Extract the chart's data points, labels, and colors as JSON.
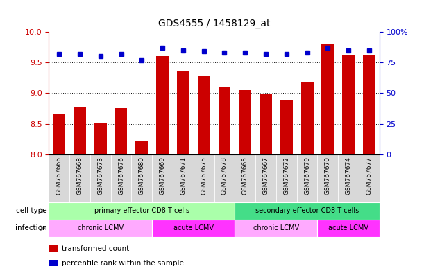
{
  "title": "GDS4555 / 1458129_at",
  "samples": [
    "GSM767666",
    "GSM767668",
    "GSM767673",
    "GSM767676",
    "GSM767680",
    "GSM767669",
    "GSM767671",
    "GSM767675",
    "GSM767678",
    "GSM767665",
    "GSM767667",
    "GSM767672",
    "GSM767679",
    "GSM767670",
    "GSM767674",
    "GSM767677"
  ],
  "transformed_count": [
    8.65,
    8.78,
    8.51,
    8.75,
    8.22,
    9.6,
    9.37,
    9.28,
    9.1,
    9.05,
    8.99,
    8.89,
    9.17,
    9.8,
    9.62,
    9.63
  ],
  "percentile_rank": [
    82,
    82,
    80,
    82,
    77,
    87,
    85,
    84,
    83,
    83,
    82,
    82,
    83,
    87,
    85,
    85
  ],
  "ylim_left": [
    8.0,
    10.0
  ],
  "ylim_right": [
    0,
    100
  ],
  "yticks_left": [
    8.0,
    8.5,
    9.0,
    9.5,
    10.0
  ],
  "yticks_right": [
    0,
    25,
    50,
    75,
    100
  ],
  "bar_color": "#cc0000",
  "dot_color": "#0000cc",
  "cell_type_groups": [
    {
      "label": "primary effector CD8 T cells",
      "start": 0,
      "end": 8,
      "color": "#aaffaa"
    },
    {
      "label": "secondary effector CD8 T cells",
      "start": 9,
      "end": 15,
      "color": "#44dd88"
    }
  ],
  "infection_groups": [
    {
      "label": "chronic LCMV",
      "start": 0,
      "end": 4,
      "color": "#ffaaff"
    },
    {
      "label": "acute LCMV",
      "start": 5,
      "end": 8,
      "color": "#ff33ff"
    },
    {
      "label": "chronic LCMV",
      "start": 9,
      "end": 12,
      "color": "#ffaaff"
    },
    {
      "label": "acute LCMV",
      "start": 13,
      "end": 15,
      "color": "#ff33ff"
    }
  ],
  "legend_items": [
    {
      "label": "transformed count",
      "color": "#cc0000"
    },
    {
      "label": "percentile rank within the sample",
      "color": "#0000cc"
    }
  ],
  "bar_color_left": "#cc0000",
  "right_axis_color": "#0000cc",
  "left_axis_color": "#cc0000",
  "tick_label_color": "#808080",
  "xticklabel_bg": "#d8d8d8",
  "grid_yticks": [
    8.5,
    9.0,
    9.5
  ],
  "left_label_color": "#808080"
}
